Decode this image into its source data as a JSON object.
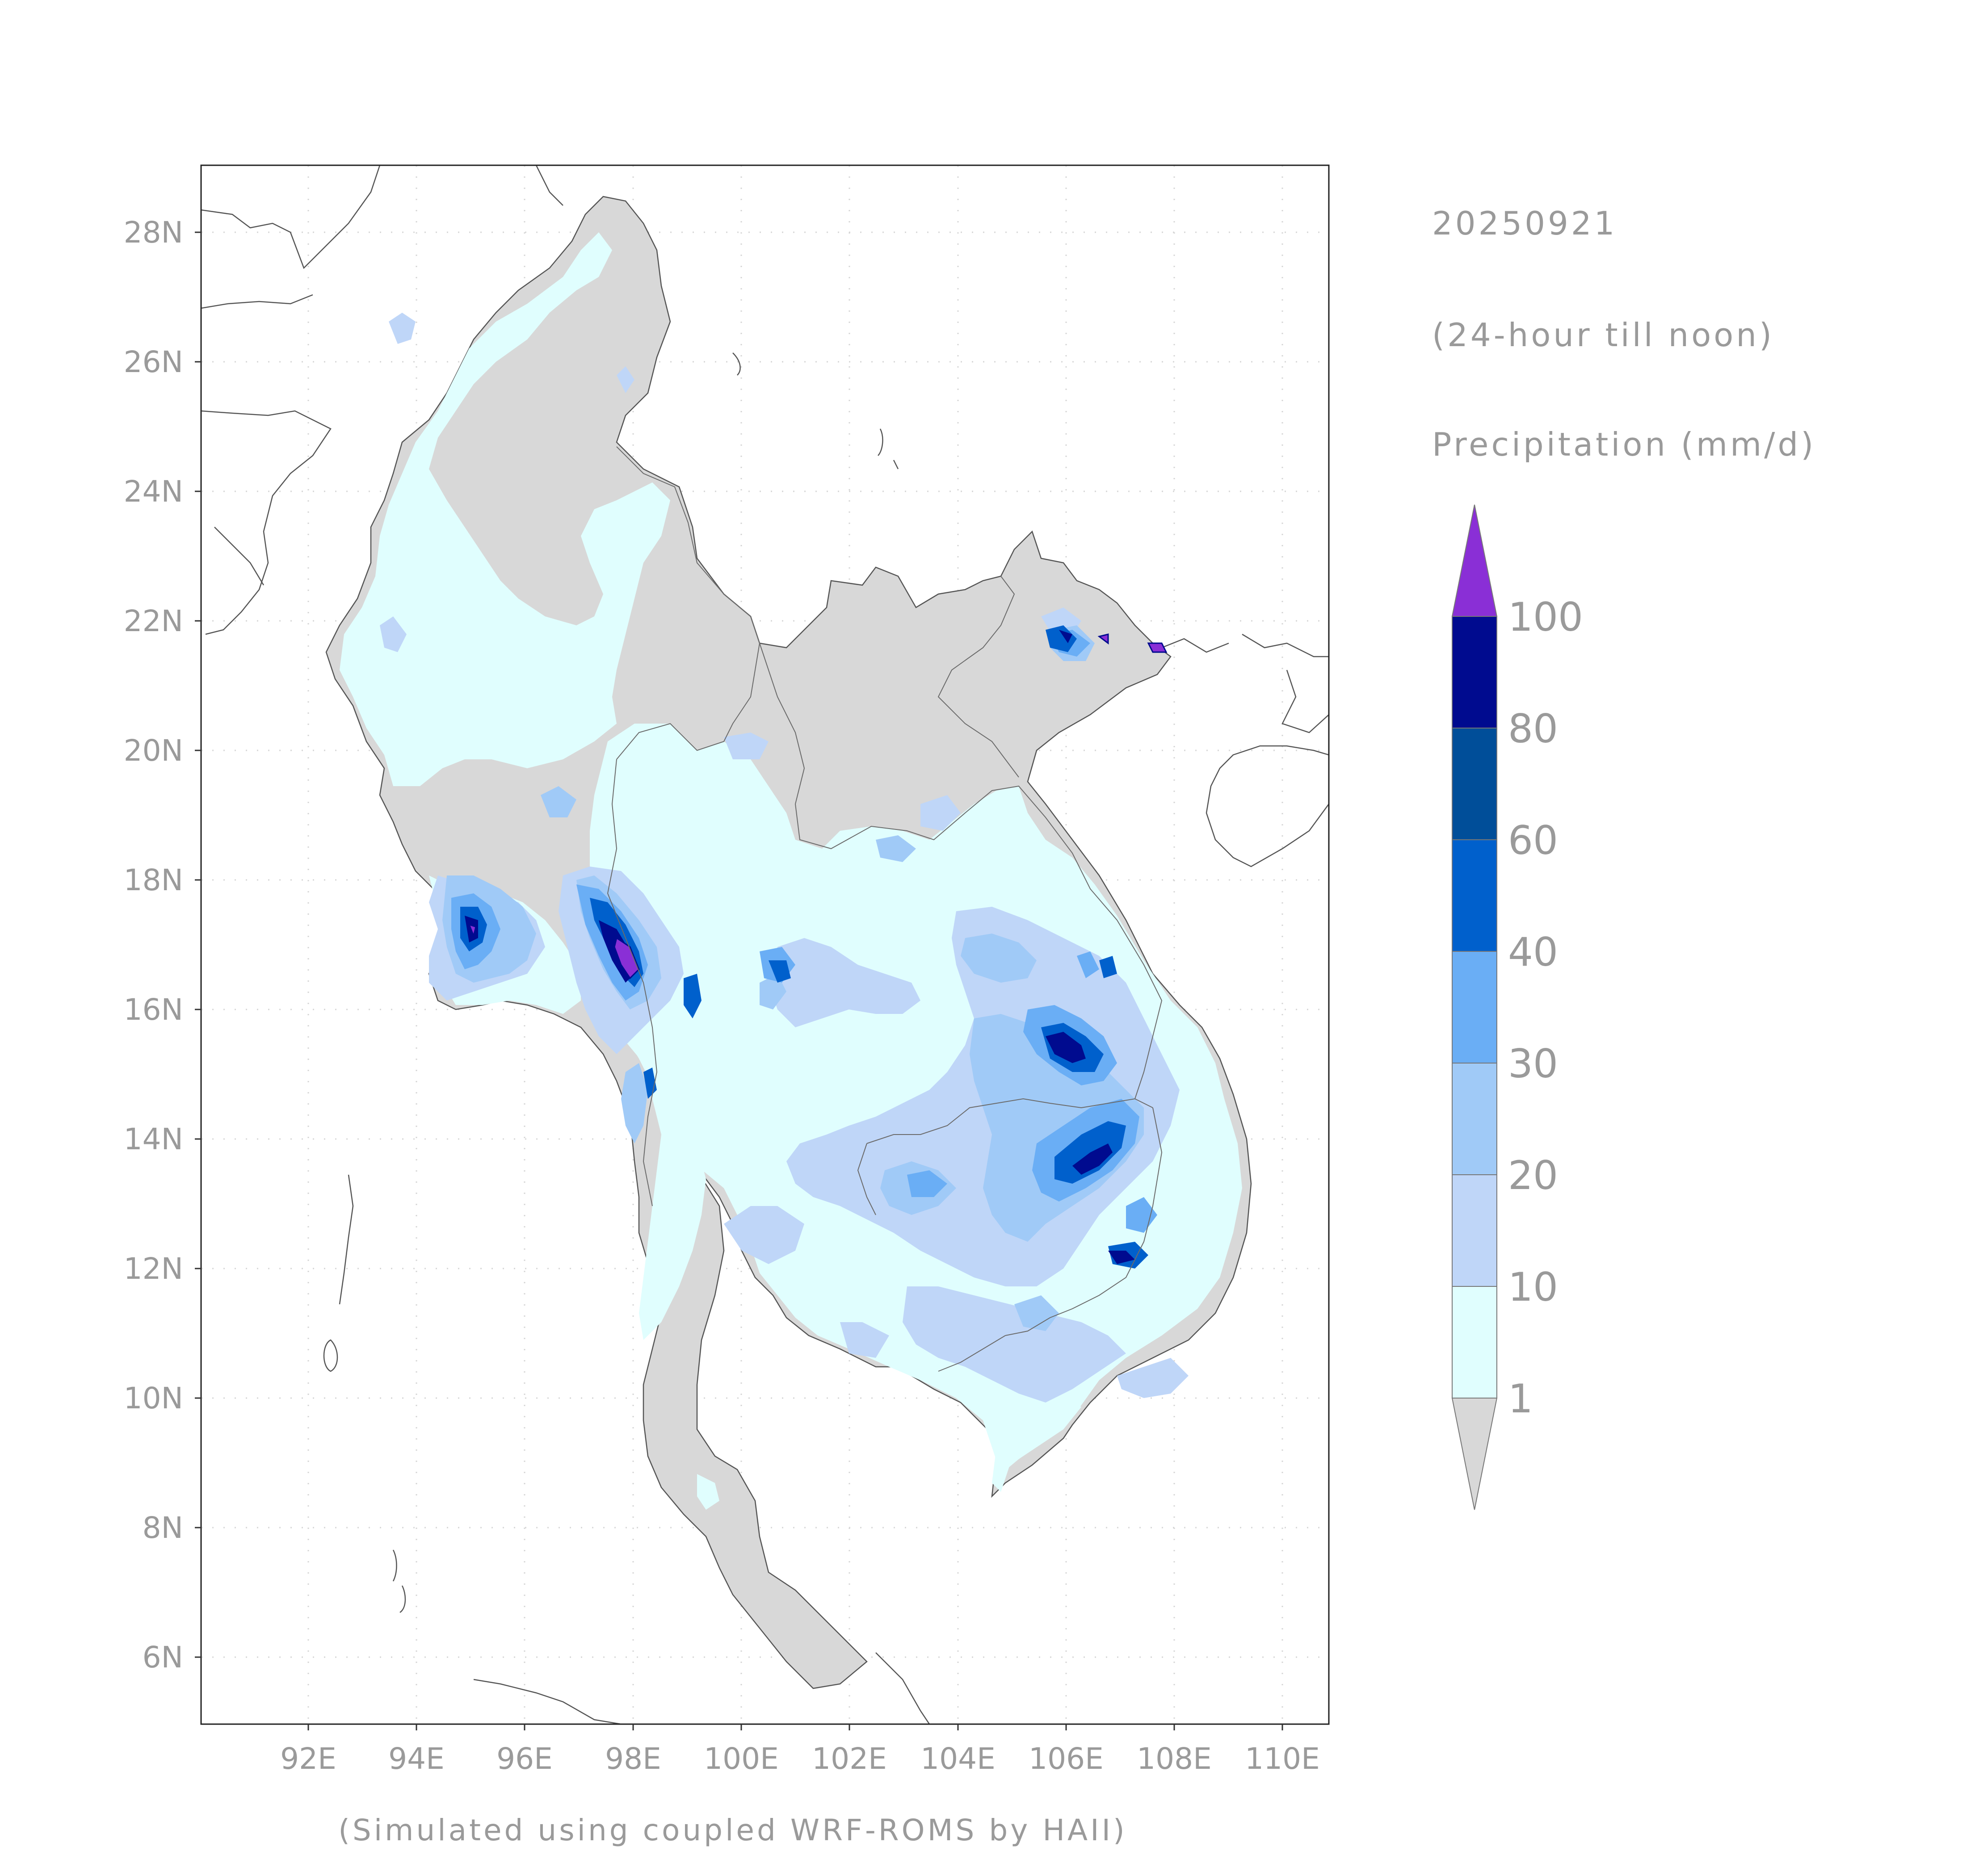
{
  "map": {
    "lat_ticks": [
      "28N",
      "26N",
      "24N",
      "22N",
      "20N",
      "18N",
      "16N",
      "14N",
      "12N",
      "10N",
      "8N",
      "6N"
    ],
    "lon_ticks": [
      "92E",
      "94E",
      "96E",
      "98E",
      "100E",
      "102E",
      "104E",
      "106E",
      "108E",
      "110E"
    ],
    "lat_values": [
      28,
      26,
      24,
      22,
      20,
      18,
      16,
      14,
      12,
      10,
      8,
      6
    ],
    "lon_values": [
      92,
      94,
      96,
      98,
      100,
      102,
      104,
      106,
      108,
      110
    ],
    "lat_range": [
      5,
      29
    ],
    "lon_range": [
      90,
      111
    ],
    "caption": "(Simulated using coupled WRF-ROMS by HAII)"
  },
  "info": {
    "date": "20250921",
    "period": "(24-hour till noon)",
    "variable": "Precipitation (mm/d)"
  },
  "legend": {
    "levels": [
      "100",
      "80",
      "60",
      "40",
      "30",
      "20",
      "10",
      "1"
    ],
    "colors": {
      "over_100": "#8a2fd6",
      "80_100": "#000b8f",
      "60_80": "#004e99",
      "40_60": "#0060cc",
      "30_40": "#6aaef5",
      "20_30": "#a0caf7",
      "10_20": "#bfd6f8",
      "1_10": "#e0fefe",
      "below_1": "#d8d8d8"
    }
  }
}
